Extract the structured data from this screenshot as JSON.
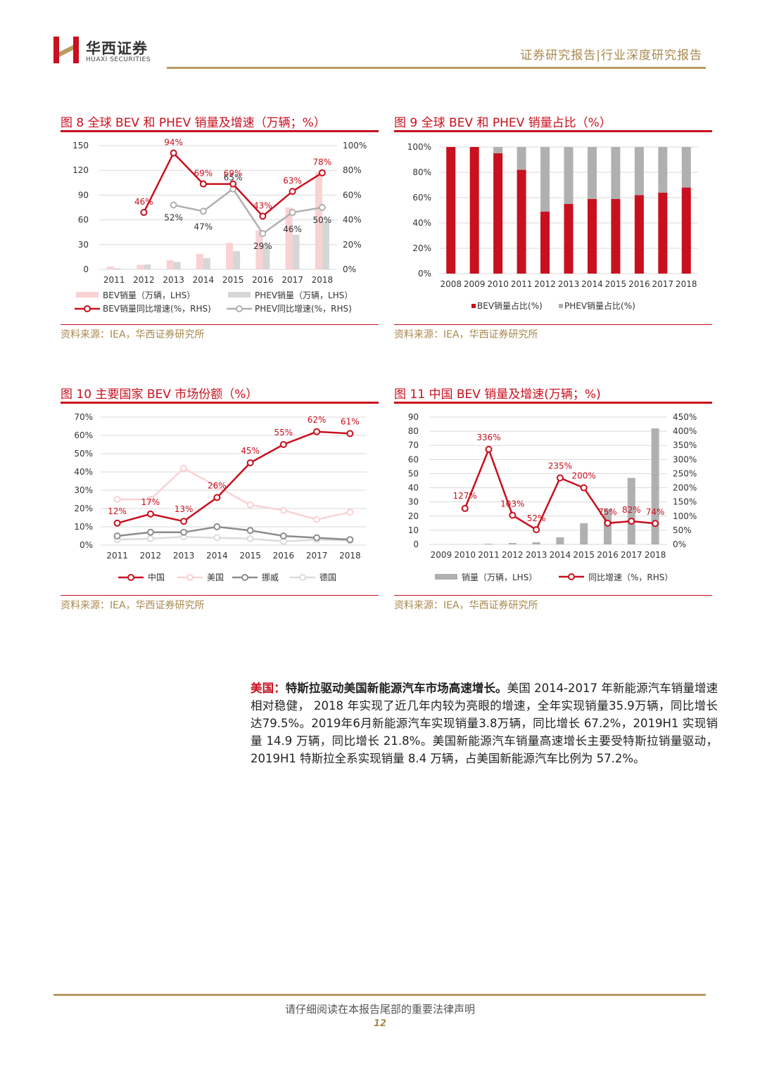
{
  "header": {
    "brand_cn": "华西证券",
    "brand_en": "HUAXI SECURITIES",
    "report_type": "证券研究报告|行业深度研究报告"
  },
  "colors": {
    "red": "#c8101e",
    "pink": "#f9d2d4",
    "gray": "#b0b0b0",
    "lightgray": "#d6d6d6",
    "gold": "#a8884f"
  },
  "figures": [
    {
      "title": "图 8  全球 BEV 和 PHEV 销量及增速（万辆；%）",
      "source": "资料来源：IEA，华西证券研究所"
    },
    {
      "title": "图 9  全球 BEV 和 PHEV 销量占比（%）",
      "source": "资料来源：IEA，华西证券研究所"
    },
    {
      "title": "图 10  主要国家 BEV 市场份额（%）",
      "source": "资料来源：IEA，华西证券研究所"
    },
    {
      "title": "图 11  中国 BEV 销量及增速(万辆；%)",
      "source": "资料来源：IEA，华西证券研究所"
    }
  ],
  "chart_data": [
    {
      "type": "bar",
      "categories": [
        "2011",
        "2012",
        "2013",
        "2014",
        "2015",
        "2016",
        "2017",
        "2018"
      ],
      "ylim_left": [
        0,
        150
      ],
      "yticks_left": [
        "0",
        "30",
        "60",
        "90",
        "120",
        "150"
      ],
      "ylim_right": [
        0,
        100
      ],
      "yticks_right": [
        "0%",
        "20%",
        "40%",
        "60%",
        "80%",
        "100%"
      ],
      "series": [
        {
          "name": "BEV销量（万辆，LHS）",
          "kind": "bar",
          "axis": "left",
          "values": [
            3.5,
            5.5,
            11,
            19,
            32,
            47,
            75,
            118
          ]
        },
        {
          "name": "PHEV销量（万辆，LHS）",
          "kind": "bar",
          "axis": "left",
          "values": [
            1.3,
            6,
            9,
            13.5,
            22,
            28,
            42,
            58
          ]
        },
        {
          "name": "BEV销量同比增速(%，RHS)",
          "kind": "line",
          "axis": "right",
          "values": [
            null,
            46,
            94,
            69,
            69,
            43,
            63,
            78
          ],
          "labels": [
            "",
            "46%",
            "94%",
            "69%",
            "69%",
            "43%",
            "63%",
            "78%"
          ]
        },
        {
          "name": "PHEV同比增速(%，RHS)",
          "kind": "line",
          "axis": "right",
          "values": [
            null,
            null,
            52,
            47,
            65,
            29,
            46,
            50
          ],
          "labels": [
            "",
            "",
            "52%",
            "47%",
            "65%",
            "29%",
            "46%",
            "50%"
          ]
        }
      ],
      "legend": "bottom"
    },
    {
      "type": "bar",
      "stacked": true,
      "categories": [
        "2008",
        "2009",
        "2010",
        "2011",
        "2012",
        "2013",
        "2014",
        "2015",
        "2016",
        "2017",
        "2018"
      ],
      "ylim": [
        0,
        100
      ],
      "yticks": [
        "0%",
        "20%",
        "40%",
        "60%",
        "80%",
        "100%"
      ],
      "series": [
        {
          "name": "BEV销量占比(%)",
          "values": [
            100,
            100,
            95,
            82,
            49,
            55,
            59,
            59,
            62,
            64,
            68
          ]
        },
        {
          "name": "PHEV销量占比(%)",
          "values": [
            0,
            0,
            5,
            18,
            51,
            45,
            41,
            41,
            38,
            36,
            32
          ]
        }
      ],
      "legend": "bottom"
    },
    {
      "type": "line",
      "categories": [
        "2011",
        "2012",
        "2013",
        "2014",
        "2015",
        "2016",
        "2017",
        "2018"
      ],
      "ylim": [
        0,
        70
      ],
      "yticks": [
        "0%",
        "10%",
        "20%",
        "30%",
        "40%",
        "50%",
        "60%",
        "70%"
      ],
      "series": [
        {
          "name": "中国",
          "values": [
            12,
            17,
            13,
            26,
            45,
            55,
            62,
            61
          ],
          "labels": [
            "12%",
            "17%",
            "13%",
            "26%",
            "45%",
            "55%",
            "62%",
            "61%"
          ]
        },
        {
          "name": "美国",
          "values": [
            25,
            25,
            42,
            32,
            22,
            19,
            14,
            18
          ]
        },
        {
          "name": "挪威",
          "values": [
            5,
            7,
            7,
            10,
            8,
            5,
            4,
            3
          ]
        },
        {
          "name": "德国",
          "values": [
            3,
            3.5,
            4.5,
            4,
            3.5,
            2,
            3,
            2.5
          ]
        }
      ],
      "legend": "bottom"
    },
    {
      "type": "bar",
      "categories": [
        "2009",
        "2010",
        "2011",
        "2012",
        "2013",
        "2014",
        "2015",
        "2016",
        "2017",
        "2018"
      ],
      "ylim_left": [
        0,
        90
      ],
      "yticks_left": [
        "0",
        "10",
        "20",
        "30",
        "40",
        "50",
        "60",
        "70",
        "80",
        "90"
      ],
      "ylim_right": [
        0,
        450
      ],
      "yticks_right": [
        "0%",
        "50%",
        "100%",
        "150%",
        "200%",
        "250%",
        "300%",
        "350%",
        "400%",
        "450%"
      ],
      "series": [
        {
          "name": "销量（万辆，LHS）",
          "kind": "bar",
          "axis": "left",
          "values": [
            0,
            0.1,
            0.5,
            1,
            1.5,
            5,
            15,
            25,
            47,
            82
          ]
        },
        {
          "name": "同比增速（%，RHS）",
          "kind": "line",
          "axis": "right",
          "values": [
            null,
            127,
            336,
            103,
            52,
            235,
            200,
            75,
            82,
            74
          ],
          "labels": [
            "",
            "127%",
            "336%",
            "103%",
            "52%",
            "235%",
            "200%",
            "75%",
            "82%",
            "74%"
          ]
        }
      ],
      "legend": "bottom"
    }
  ],
  "body": {
    "lead": "美国：",
    "lead_bold": "特斯拉驱动美国新能源汽车市场高速增长。",
    "text": "美国 2014-2017 年新能源汽车销量增速相对稳健， 2018 年实现了近几年内较为亮眼的增速，全年实现销量35.9万辆，同比增长达79.5%。2019年6月新能源汽车实现销量3.8万辆，同比增长 67.2%，2019H1 实现销量 14.9 万辆，同比增长 21.8%。美国新能源汽车销量高速增长主要受特斯拉销量驱动，2019H1 特斯拉全系实现销量 8.4 万辆，占美国新能源汽车比例为 57.2%。"
  },
  "footer": {
    "note": "请仔细阅读在本报告尾部的重要法律声明",
    "page": "12"
  }
}
